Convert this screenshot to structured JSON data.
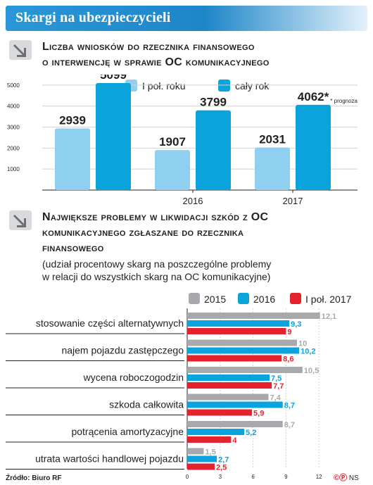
{
  "banner": {
    "title": "Skargi na ubezpieczycieli"
  },
  "section1": {
    "title_line1": "Liczba wniosków do rzecznika finansowego",
    "title_line2": "o interwencję w sprawie OC komunikacyjnego"
  },
  "section2": {
    "title_line1": "Największe problemy w likwidacji szkód z OC",
    "title_line2": "komunikacyjnego zgłaszane do rzecznika",
    "title_line3": "finansowego",
    "subtitle_line1": "(udział procentowy skarg na poszczególne problemy",
    "subtitle_line2": "w relacji do wszystkich skarg na OC komunikacyjne)"
  },
  "footer": {
    "source": "Źródło: Biuro RF",
    "logo": "NS"
  },
  "colors": {
    "light_blue": "#8fd0f0",
    "blue": "#0aa3dc",
    "gray": "#a7a9ac",
    "red": "#e4222e",
    "banner": "#1d86c8"
  },
  "chart_data": [
    {
      "type": "bar",
      "categories": [
        "",
        "2016",
        "2017"
      ],
      "series": [
        {
          "name": "I poł. roku",
          "values": [
            2939,
            1907,
            2031
          ],
          "labels": [
            "2939",
            "1907",
            "2031"
          ]
        },
        {
          "name": "cały rok",
          "values": [
            5099,
            3799,
            4062
          ],
          "labels": [
            "5099",
            "3799",
            "4062*"
          ]
        }
      ],
      "yticks": [
        "1000",
        "2000",
        "3000",
        "4000",
        "5000"
      ],
      "ylim": [
        0,
        5500
      ],
      "note": "* prognoza",
      "legend_position": "top-left",
      "grid": true
    },
    {
      "type": "bar",
      "orientation": "horizontal",
      "categories": [
        "stosowanie części alternatywnych",
        "najem pojazdu zastępczego",
        "wycena roboczogodzin",
        "szkoda całkowita",
        "potrącenia amortyzacyjne",
        "utrata wartości handlowej pojazdu"
      ],
      "series": [
        {
          "name": "2015",
          "values": [
            12.1,
            10,
            10.5,
            7.4,
            8.7,
            1.5
          ],
          "labels": [
            "12,1",
            "10",
            "10,5",
            "7,4",
            "8,7",
            "1,5"
          ]
        },
        {
          "name": "2016",
          "values": [
            9.3,
            10.2,
            7.5,
            8.7,
            5.2,
            2.7
          ],
          "labels": [
            "9,3",
            "10,2",
            "7,5",
            "8,7",
            "5,2",
            "2,7"
          ]
        },
        {
          "name": "I poł. 2017",
          "values": [
            9,
            8.6,
            7.7,
            5.9,
            4,
            2.5
          ],
          "labels": [
            "9",
            "8,6",
            "7,7",
            "5,9",
            "4",
            "2,5"
          ]
        }
      ],
      "xticks": [
        "0",
        "3",
        "6",
        "9",
        "12"
      ],
      "xlim": [
        0,
        13
      ],
      "legend_position": "top-right",
      "grid": true
    }
  ]
}
